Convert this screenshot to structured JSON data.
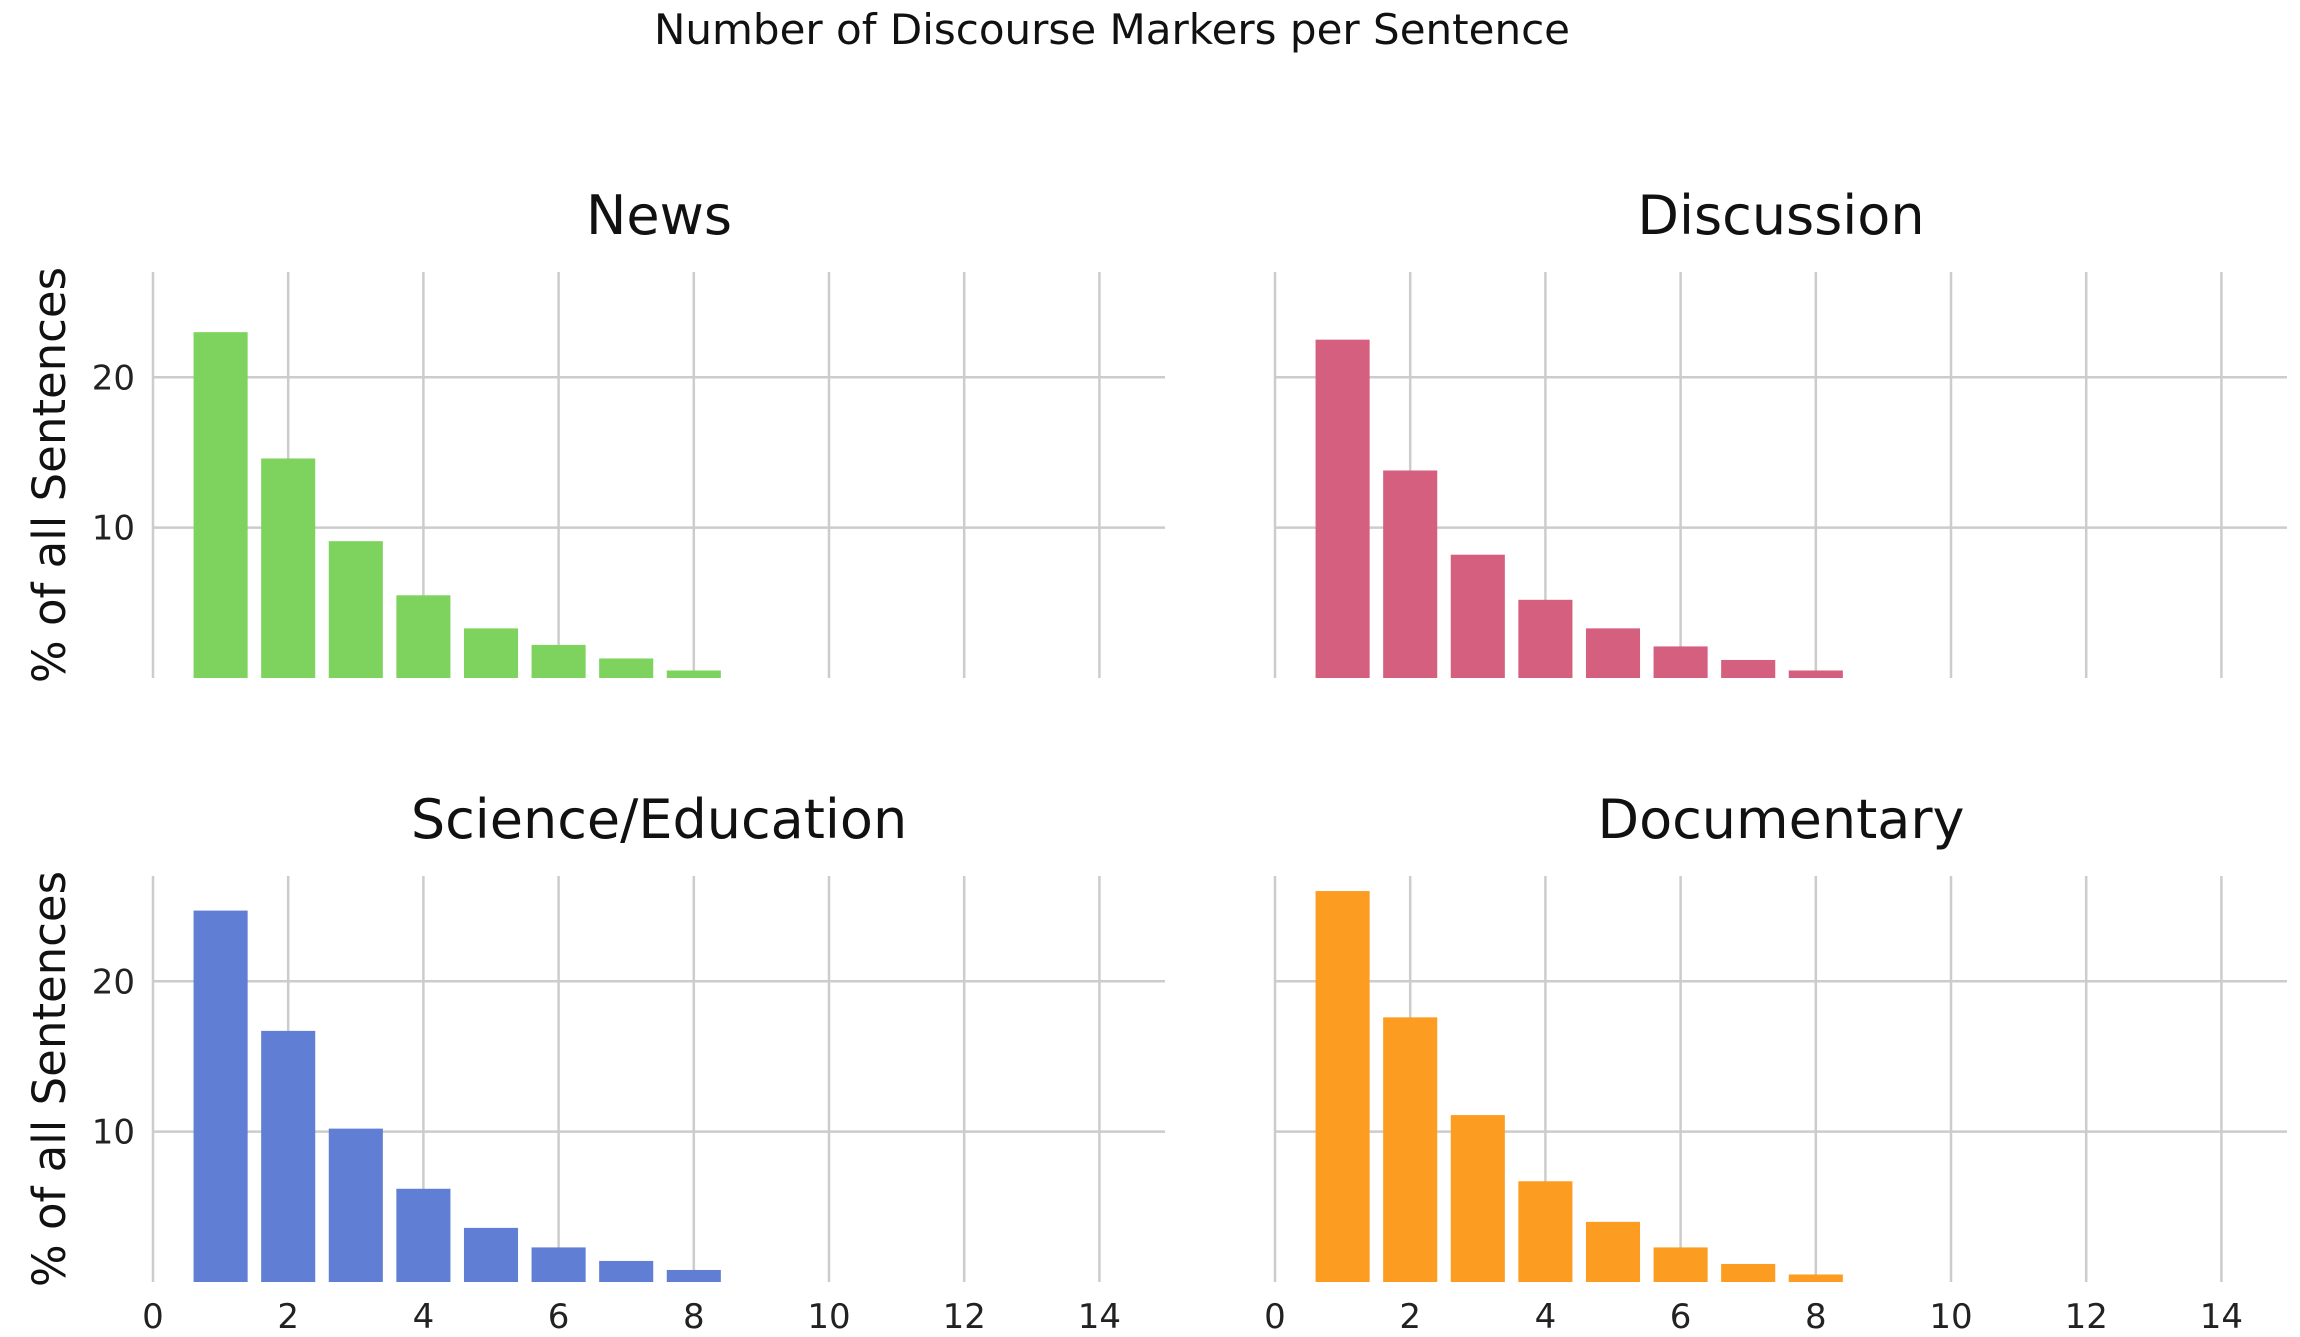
{
  "title": "Number of Discourse Markers per Sentence",
  "chart_data": [
    {
      "type": "bar",
      "title": "News",
      "ylabel": "% of all Sentences",
      "xlabel": "",
      "x": [
        1,
        2,
        3,
        4,
        5,
        6,
        7,
        8
      ],
      "values": [
        23.0,
        14.6,
        9.1,
        5.5,
        3.3,
        2.2,
        1.3,
        0.5
      ],
      "color": "#7ed35f",
      "xlim": [
        0,
        15
      ],
      "ylim": [
        0,
        27
      ],
      "xticks": [
        "0",
        "2",
        "4",
        "6",
        "8",
        "10",
        "12",
        "14"
      ],
      "yticks": [
        "10",
        "20"
      ],
      "grid": true
    },
    {
      "type": "bar",
      "title": "Discussion",
      "ylabel": "",
      "xlabel": "",
      "x": [
        1,
        2,
        3,
        4,
        5,
        6,
        7,
        8
      ],
      "values": [
        22.5,
        13.8,
        8.2,
        5.2,
        3.3,
        2.1,
        1.2,
        0.5
      ],
      "color": "#d45f7e",
      "xlim": [
        0,
        15
      ],
      "ylim": [
        0,
        27
      ],
      "xticks": [
        "0",
        "2",
        "4",
        "6",
        "8",
        "10",
        "12",
        "14"
      ],
      "yticks": [
        "10",
        "20"
      ],
      "grid": true
    },
    {
      "type": "bar",
      "title": "Science/Education",
      "ylabel": "% of all Sentences",
      "xlabel": "",
      "x": [
        1,
        2,
        3,
        4,
        5,
        6,
        7,
        8
      ],
      "values": [
        24.7,
        16.7,
        10.2,
        6.2,
        3.6,
        2.3,
        1.4,
        0.8
      ],
      "color": "#5f7ed4",
      "xlim": [
        0,
        15
      ],
      "ylim": [
        0,
        27
      ],
      "xticks": [
        "0",
        "2",
        "4",
        "6",
        "8",
        "10",
        "12",
        "14"
      ],
      "yticks": [
        "10",
        "20"
      ],
      "grid": true
    },
    {
      "type": "bar",
      "title": "Documentary",
      "ylabel": "",
      "xlabel": "",
      "x": [
        1,
        2,
        3,
        4,
        5,
        6,
        7,
        8
      ],
      "values": [
        26.0,
        17.6,
        11.1,
        6.7,
        4.0,
        2.3,
        1.2,
        0.5
      ],
      "color": "#fc9d22",
      "xlim": [
        0,
        15
      ],
      "ylim": [
        0,
        27
      ],
      "xticks": [
        "0",
        "2",
        "4",
        "6",
        "8",
        "10",
        "12",
        "14"
      ],
      "yticks": [
        "10",
        "20"
      ],
      "grid": true
    }
  ]
}
